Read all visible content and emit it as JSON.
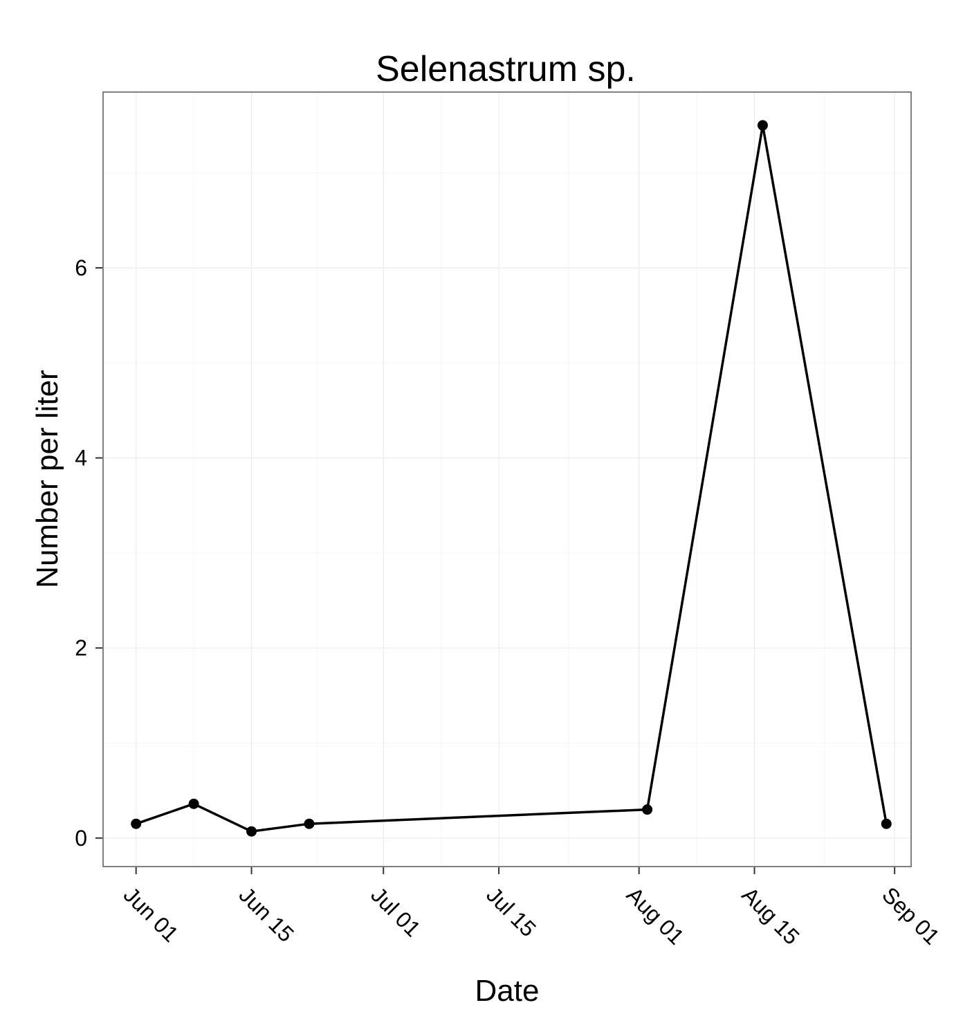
{
  "chart_data": {
    "type": "line",
    "title": "Selenastrum sp.",
    "xlabel": "Date",
    "ylabel": "Number per liter",
    "x_ticks": [
      "Jun 01",
      "Jun 15",
      "Jul 01",
      "Jul 15",
      "Aug 01",
      "Aug 15",
      "Sep 01"
    ],
    "y_ticks": [
      "0",
      "2",
      "4",
      "6"
    ],
    "xlim": [
      "2012-05-28",
      "2012-09-03"
    ],
    "ylim": [
      -0.3,
      7.85
    ],
    "grid": true,
    "series": [
      {
        "x": [
          "2012-06-01",
          "2012-06-08",
          "2012-06-15",
          "2012-06-22",
          "2012-08-02",
          "2012-08-16",
          "2012-08-31"
        ],
        "y": [
          0.15,
          0.36,
          0.07,
          0.15,
          0.3,
          7.5,
          0.15
        ],
        "color": "#000000"
      }
    ]
  }
}
